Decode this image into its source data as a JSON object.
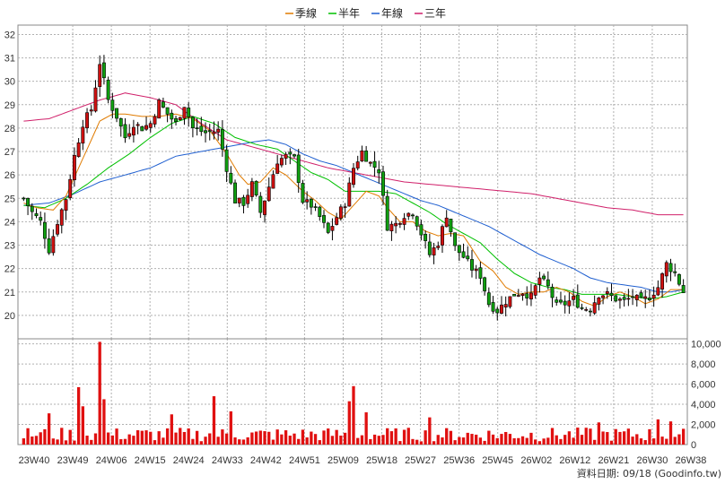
{
  "chart_data": {
    "type": "candlestick",
    "legend": [
      {
        "name": "季線",
        "color": "#e07b00"
      },
      {
        "name": "半年",
        "color": "#00c000"
      },
      {
        "name": "年線",
        "color": "#1f5fd0"
      },
      {
        "name": "三年",
        "color": "#d0206a"
      }
    ],
    "price_axis": {
      "min": 19,
      "max": 32.4,
      "ticks": [
        20,
        21,
        22,
        23,
        24,
        25,
        26,
        27,
        28,
        29,
        30,
        31,
        32
      ]
    },
    "volume_axis": {
      "min": 0,
      "max": 10500,
      "ticks": [
        {
          "v": 2000,
          "label": "2,000"
        },
        {
          "v": 4000,
          "label": "4,000"
        },
        {
          "v": 6000,
          "label": "6,000"
        },
        {
          "v": 8000,
          "label": "8,000"
        },
        {
          "v": 10000,
          "label": "10,000"
        }
      ]
    },
    "x_labels": [
      "23W40",
      "23W49",
      "24W06",
      "24W15",
      "24W24",
      "24W33",
      "24W42",
      "24W51",
      "25W09",
      "25W18",
      "25W27",
      "25W36",
      "25W45",
      "26W02",
      "26W12",
      "26W21",
      "26W30",
      "26W38"
    ],
    "weeks": 157,
    "quarter_ma": [
      [
        0,
        24.8
      ],
      [
        3,
        24.6
      ],
      [
        7,
        24.5
      ],
      [
        10,
        25.1
      ],
      [
        13,
        26.3
      ],
      [
        16,
        27.5
      ],
      [
        18,
        28.3
      ],
      [
        21,
        28.6
      ],
      [
        24,
        28.6
      ],
      [
        28,
        28.5
      ],
      [
        32,
        28.5
      ],
      [
        36,
        28.6
      ],
      [
        40,
        28.4
      ],
      [
        44,
        27.9
      ],
      [
        48,
        26.9
      ],
      [
        51,
        26.0
      ],
      [
        53,
        25.6
      ],
      [
        56,
        25.7
      ],
      [
        59,
        26.3
      ],
      [
        62,
        26.0
      ],
      [
        66,
        25.3
      ],
      [
        69,
        24.9
      ],
      [
        72,
        24.4
      ],
      [
        75,
        24.1
      ],
      [
        78,
        24.7
      ],
      [
        81,
        25.3
      ],
      [
        84,
        25.1
      ],
      [
        86,
        24.6
      ],
      [
        89,
        24.0
      ],
      [
        92,
        24.0
      ],
      [
        95,
        23.6
      ],
      [
        98,
        23.4
      ],
      [
        101,
        23.5
      ],
      [
        104,
        23.4
      ],
      [
        108,
        22.3
      ],
      [
        111,
        21.9
      ],
      [
        114,
        21.2
      ],
      [
        117,
        20.9
      ],
      [
        120,
        21.0
      ],
      [
        123,
        21.0
      ],
      [
        126,
        21.2
      ],
      [
        129,
        21.0
      ],
      [
        132,
        20.6
      ],
      [
        135,
        20.4
      ],
      [
        138,
        20.8
      ],
      [
        141,
        21.0
      ],
      [
        144,
        20.8
      ],
      [
        147,
        20.5
      ],
      [
        150,
        20.7
      ],
      [
        153,
        21.1
      ],
      [
        156,
        21.1
      ]
    ],
    "halfyear_ma": [
      [
        0,
        24.7
      ],
      [
        5,
        24.6
      ],
      [
        10,
        25.0
      ],
      [
        15,
        25.6
      ],
      [
        20,
        26.3
      ],
      [
        25,
        26.9
      ],
      [
        30,
        27.6
      ],
      [
        35,
        28.2
      ],
      [
        40,
        28.5
      ],
      [
        45,
        28.2
      ],
      [
        50,
        27.6
      ],
      [
        55,
        27.3
      ],
      [
        60,
        27.1
      ],
      [
        64,
        26.6
      ],
      [
        68,
        26.1
      ],
      [
        72,
        25.8
      ],
      [
        76,
        25.3
      ],
      [
        80,
        25.3
      ],
      [
        84,
        25.3
      ],
      [
        88,
        25.2
      ],
      [
        92,
        24.8
      ],
      [
        96,
        24.4
      ],
      [
        100,
        23.9
      ],
      [
        104,
        23.5
      ],
      [
        108,
        23.1
      ],
      [
        112,
        22.4
      ],
      [
        116,
        21.8
      ],
      [
        120,
        21.4
      ],
      [
        124,
        21.2
      ],
      [
        128,
        21.1
      ],
      [
        132,
        20.9
      ],
      [
        136,
        20.9
      ],
      [
        140,
        20.9
      ],
      [
        144,
        20.8
      ],
      [
        148,
        20.7
      ],
      [
        152,
        20.8
      ],
      [
        156,
        21.0
      ]
    ],
    "year_ma": [
      [
        0,
        24.7
      ],
      [
        6,
        24.8
      ],
      [
        12,
        25.2
      ],
      [
        18,
        25.7
      ],
      [
        24,
        26.0
      ],
      [
        30,
        26.3
      ],
      [
        36,
        26.8
      ],
      [
        42,
        27.0
      ],
      [
        48,
        27.2
      ],
      [
        54,
        27.4
      ],
      [
        58,
        27.5
      ],
      [
        62,
        27.3
      ],
      [
        66,
        26.9
      ],
      [
        70,
        26.6
      ],
      [
        74,
        26.4
      ],
      [
        78,
        26.1
      ],
      [
        82,
        25.8
      ],
      [
        86,
        25.5
      ],
      [
        90,
        25.2
      ],
      [
        94,
        24.9
      ],
      [
        98,
        24.7
      ],
      [
        102,
        24.4
      ],
      [
        106,
        24.1
      ],
      [
        110,
        23.8
      ],
      [
        114,
        23.4
      ],
      [
        118,
        23.0
      ],
      [
        122,
        22.6
      ],
      [
        126,
        22.3
      ],
      [
        130,
        22.0
      ],
      [
        134,
        21.6
      ],
      [
        138,
        21.4
      ],
      [
        142,
        21.3
      ],
      [
        146,
        21.2
      ],
      [
        150,
        21.0
      ],
      [
        153,
        21.0
      ],
      [
        156,
        21.1
      ]
    ],
    "threeyear_ma": [
      [
        0,
        28.3
      ],
      [
        6,
        28.4
      ],
      [
        12,
        28.8
      ],
      [
        18,
        29.2
      ],
      [
        24,
        29.5
      ],
      [
        30,
        29.3
      ],
      [
        36,
        29.0
      ],
      [
        42,
        28.2
      ],
      [
        48,
        27.5
      ],
      [
        54,
        27.2
      ],
      [
        60,
        26.9
      ],
      [
        66,
        26.6
      ],
      [
        72,
        26.3
      ],
      [
        78,
        26.1
      ],
      [
        84,
        25.9
      ],
      [
        90,
        25.7
      ],
      [
        96,
        25.6
      ],
      [
        102,
        25.5
      ],
      [
        108,
        25.4
      ],
      [
        114,
        25.3
      ],
      [
        120,
        25.2
      ],
      [
        126,
        25.0
      ],
      [
        132,
        24.8
      ],
      [
        138,
        24.6
      ],
      [
        144,
        24.5
      ],
      [
        150,
        24.3
      ],
      [
        156,
        24.3
      ]
    ],
    "close_path": [
      [
        0,
        25.0
      ],
      [
        2,
        24.4
      ],
      [
        4,
        24.0
      ],
      [
        6,
        22.8
      ],
      [
        8,
        24.0
      ],
      [
        10,
        25.0
      ],
      [
        12,
        26.8
      ],
      [
        14,
        28.2
      ],
      [
        16,
        28.8
      ],
      [
        18,
        30.8
      ],
      [
        20,
        29.2
      ],
      [
        22,
        28.5
      ],
      [
        24,
        27.6
      ],
      [
        26,
        28.2
      ],
      [
        28,
        28.0
      ],
      [
        30,
        28.2
      ],
      [
        32,
        29.1
      ],
      [
        34,
        28.6
      ],
      [
        36,
        28.2
      ],
      [
        38,
        29.0
      ],
      [
        40,
        28.0
      ],
      [
        43,
        27.8
      ],
      [
        46,
        27.9
      ],
      [
        48,
        26.3
      ],
      [
        50,
        24.9
      ],
      [
        52,
        24.8
      ],
      [
        54,
        25.6
      ],
      [
        56,
        24.4
      ],
      [
        58,
        25.5
      ],
      [
        60,
        26.6
      ],
      [
        62,
        26.8
      ],
      [
        64,
        26.7
      ],
      [
        66,
        24.9
      ],
      [
        68,
        24.7
      ],
      [
        70,
        24.2
      ],
      [
        72,
        23.5
      ],
      [
        74,
        24.2
      ],
      [
        76,
        24.8
      ],
      [
        78,
        26.3
      ],
      [
        80,
        27.0
      ],
      [
        82,
        26.5
      ],
      [
        84,
        26.2
      ],
      [
        86,
        23.8
      ],
      [
        88,
        23.9
      ],
      [
        90,
        24.3
      ],
      [
        92,
        24.4
      ],
      [
        94,
        23.5
      ],
      [
        96,
        22.6
      ],
      [
        98,
        23.1
      ],
      [
        100,
        24.3
      ],
      [
        102,
        22.9
      ],
      [
        104,
        22.5
      ],
      [
        106,
        22.0
      ],
      [
        108,
        21.7
      ],
      [
        110,
        20.5
      ],
      [
        112,
        20.2
      ],
      [
        114,
        20.6
      ],
      [
        116,
        20.9
      ],
      [
        118,
        21.0
      ],
      [
        120,
        20.8
      ],
      [
        122,
        21.6
      ],
      [
        124,
        21.2
      ],
      [
        126,
        20.4
      ],
      [
        128,
        20.5
      ],
      [
        130,
        20.7
      ],
      [
        132,
        20.3
      ],
      [
        134,
        20.3
      ],
      [
        136,
        20.9
      ],
      [
        138,
        20.9
      ],
      [
        140,
        20.7
      ],
      [
        142,
        20.6
      ],
      [
        144,
        20.8
      ],
      [
        146,
        20.6
      ],
      [
        148,
        20.8
      ],
      [
        150,
        21.2
      ],
      [
        152,
        22.2
      ],
      [
        154,
        21.8
      ],
      [
        156,
        21.0
      ]
    ],
    "volume_spikes": [
      [
        18,
        10200
      ],
      [
        13,
        5700
      ],
      [
        14,
        3800
      ],
      [
        19,
        4500
      ],
      [
        45,
        4800
      ],
      [
        77,
        4300
      ],
      [
        78,
        5800
      ],
      [
        81,
        3200
      ],
      [
        6,
        3100
      ],
      [
        35,
        3000
      ],
      [
        49,
        3300
      ],
      [
        96,
        2700
      ],
      [
        136,
        2200
      ],
      [
        150,
        2500
      ],
      [
        153,
        2300
      ]
    ]
  },
  "footer": {
    "note": "資料日期: 09/18 (Goodinfo.tw)"
  }
}
